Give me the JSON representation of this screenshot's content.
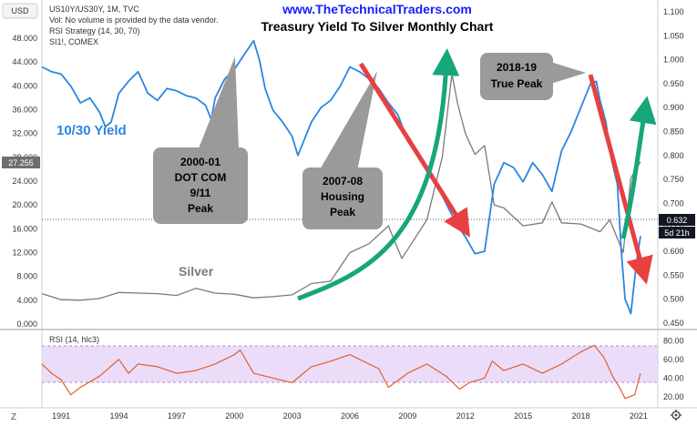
{
  "header": {
    "usd_badge": "USD",
    "symbol_line": "US10Y/US30Y, 1M, TVC",
    "vol_note": "Vol: No volume is provided by the data vendor.",
    "strategy_line": "RSI Strategy (14, 30, 70)",
    "silver_symbol": "SI1!, COMEX",
    "website": "www.TheTechnicalTraders.com",
    "title": "Treasury Yield To Silver Monthly Chart"
  },
  "annotations": {
    "yield_label": "10/30 Yield",
    "silver_label": "Silver",
    "box_dotcom": [
      "2000-01",
      "DOT COM",
      "9/11",
      "Peak"
    ],
    "box_housing": [
      "2007-08",
      "Housing",
      "Peak"
    ],
    "box_true_peak": [
      "2018-19",
      "True Peak"
    ]
  },
  "badges": {
    "left_current": "27.255",
    "right_current": "0.632",
    "right_countdown": "5d 21h"
  },
  "rsi_pane": {
    "label": "RSI (14, hlc3)",
    "ticks": [
      "80.00",
      "60.00",
      "40.00",
      "20.00"
    ]
  },
  "footer": {
    "z_button": "Z",
    "gear_icon": "gear-icon"
  },
  "colors": {
    "yield_line": "#2a86e0",
    "silver_line": "#7a7a7a",
    "red_arrow": "#e84040",
    "green_arrow": "#17a67a",
    "rsi_line": "#e0602c",
    "rsi_band": "#e6d4f7",
    "callout_box": "#9a9a9a",
    "website": "#1a1aff"
  },
  "chart_data": [
    {
      "type": "line",
      "title": "Treasury Yield To Silver Monthly Chart",
      "x_ticks": [
        "1991",
        "1994",
        "1997",
        "2000",
        "2003",
        "2006",
        "2009",
        "2012",
        "2015",
        "2018",
        "2021"
      ],
      "left_axis": {
        "ticks": [
          "0.000",
          "4.000",
          "8.000",
          "12.000",
          "16.000",
          "20.000",
          "24.000",
          "28.000",
          "32.000",
          "36.000",
          "40.000",
          "44.000",
          "48.000"
        ],
        "ylim": [
          0,
          50
        ]
      },
      "right_axis": {
        "ticks": [
          "0.450",
          "0.500",
          "0.550",
          "0.600",
          "0.650",
          "0.700",
          "0.750",
          "0.800",
          "0.850",
          "0.900",
          "0.950",
          "1.000",
          "1.050",
          "1.100"
        ],
        "ylim": [
          0.45,
          1.1
        ]
      },
      "series": [
        {
          "name": "10/30 Yield",
          "axis": "right",
          "points": [
            [
              1990.0,
              0.985
            ],
            [
              1990.5,
              0.975
            ],
            [
              1991.0,
              0.97
            ],
            [
              1991.5,
              0.945
            ],
            [
              1992.0,
              0.91
            ],
            [
              1992.5,
              0.92
            ],
            [
              1993.0,
              0.89
            ],
            [
              1993.3,
              0.86
            ],
            [
              1993.6,
              0.87
            ],
            [
              1994.0,
              0.93
            ],
            [
              1994.5,
              0.955
            ],
            [
              1995.0,
              0.975
            ],
            [
              1995.5,
              0.93
            ],
            [
              1996.0,
              0.915
            ],
            [
              1996.5,
              0.94
            ],
            [
              1997.0,
              0.935
            ],
            [
              1997.5,
              0.925
            ],
            [
              1998.0,
              0.92
            ],
            [
              1998.5,
              0.905
            ],
            [
              1998.8,
              0.875
            ],
            [
              1999.0,
              0.92
            ],
            [
              1999.5,
              0.96
            ],
            [
              2000.0,
              0.98
            ],
            [
              2000.5,
              1.01
            ],
            [
              2001.0,
              1.04
            ],
            [
              2001.3,
              1.0
            ],
            [
              2001.6,
              0.94
            ],
            [
              2002.0,
              0.895
            ],
            [
              2002.5,
              0.87
            ],
            [
              2003.0,
              0.84
            ],
            [
              2003.3,
              0.8
            ],
            [
              2003.6,
              0.83
            ],
            [
              2004.0,
              0.87
            ],
            [
              2004.5,
              0.9
            ],
            [
              2005.0,
              0.915
            ],
            [
              2005.5,
              0.945
            ],
            [
              2006.0,
              0.985
            ],
            [
              2006.5,
              0.975
            ],
            [
              2007.0,
              0.96
            ],
            [
              2007.5,
              0.94
            ],
            [
              2008.0,
              0.91
            ],
            [
              2008.5,
              0.885
            ],
            [
              2009.0,
              0.83
            ],
            [
              2009.5,
              0.8
            ],
            [
              2010.0,
              0.77
            ],
            [
              2010.5,
              0.74
            ],
            [
              2011.0,
              0.7
            ],
            [
              2011.5,
              0.66
            ],
            [
              2012.0,
              0.63
            ],
            [
              2012.5,
              0.595
            ],
            [
              2013.0,
              0.6
            ],
            [
              2013.5,
              0.74
            ],
            [
              2014.0,
              0.785
            ],
            [
              2014.5,
              0.775
            ],
            [
              2015.0,
              0.745
            ],
            [
              2015.5,
              0.785
            ],
            [
              2016.0,
              0.76
            ],
            [
              2016.5,
              0.725
            ],
            [
              2017.0,
              0.81
            ],
            [
              2017.5,
              0.85
            ],
            [
              2018.0,
              0.9
            ],
            [
              2018.5,
              0.95
            ],
            [
              2018.8,
              0.955
            ],
            [
              2019.0,
              0.915
            ],
            [
              2019.3,
              0.87
            ],
            [
              2019.6,
              0.79
            ],
            [
              2019.9,
              0.74
            ],
            [
              2020.1,
              0.6
            ],
            [
              2020.3,
              0.5
            ],
            [
              2020.6,
              0.47
            ],
            [
              2020.9,
              0.58
            ],
            [
              2021.1,
              0.632
            ]
          ]
        },
        {
          "name": "Silver",
          "axis": "left",
          "points": [
            [
              1990.0,
              5.1
            ],
            [
              1991.0,
              4.1
            ],
            [
              1992.0,
              4.0
            ],
            [
              1993.0,
              4.3
            ],
            [
              1994.0,
              5.3
            ],
            [
              1995.0,
              5.2
            ],
            [
              1996.0,
              5.1
            ],
            [
              1997.0,
              4.8
            ],
            [
              1998.0,
              6.0
            ],
            [
              1999.0,
              5.2
            ],
            [
              2000.0,
              5.0
            ],
            [
              2001.0,
              4.4
            ],
            [
              2002.0,
              4.6
            ],
            [
              2003.0,
              4.9
            ],
            [
              2004.0,
              6.8
            ],
            [
              2005.0,
              7.2
            ],
            [
              2006.0,
              12.0
            ],
            [
              2007.0,
              13.5
            ],
            [
              2008.0,
              16.5
            ],
            [
              2008.7,
              11.0
            ],
            [
              2009.0,
              12.5
            ],
            [
              2010.0,
              17.5
            ],
            [
              2010.8,
              28.0
            ],
            [
              2011.3,
              42.0
            ],
            [
              2011.6,
              37.0
            ],
            [
              2012.0,
              32.0
            ],
            [
              2012.5,
              28.5
            ],
            [
              2013.0,
              30.0
            ],
            [
              2013.5,
              20.0
            ],
            [
              2014.0,
              19.5
            ],
            [
              2015.0,
              16.5
            ],
            [
              2016.0,
              17.0
            ],
            [
              2016.5,
              20.5
            ],
            [
              2017.0,
              17.0
            ],
            [
              2018.0,
              16.8
            ],
            [
              2019.0,
              15.5
            ],
            [
              2019.5,
              17.5
            ],
            [
              2020.2,
              12.0
            ],
            [
              2020.6,
              24.5
            ],
            [
              2021.1,
              27.255
            ]
          ]
        },
        {
          "name": "RSI (14, hlc3)",
          "pane": "rsi",
          "ylim": [
            10,
            90
          ],
          "band": [
            30,
            70
          ],
          "points": [
            [
              1990.0,
              55
            ],
            [
              1990.5,
              45
            ],
            [
              1991.0,
              38
            ],
            [
              1991.5,
              22
            ],
            [
              1992.0,
              30
            ],
            [
              1993.0,
              42
            ],
            [
              1994.0,
              60
            ],
            [
              1994.5,
              45
            ],
            [
              1995.0,
              55
            ],
            [
              1996.0,
              52
            ],
            [
              1997.0,
              45
            ],
            [
              1998.0,
              48
            ],
            [
              1999.0,
              55
            ],
            [
              2000.0,
              65
            ],
            [
              2000.3,
              70
            ],
            [
              2001.0,
              45
            ],
            [
              2002.0,
              40
            ],
            [
              2003.0,
              35
            ],
            [
              2004.0,
              52
            ],
            [
              2005.0,
              58
            ],
            [
              2006.0,
              65
            ],
            [
              2006.5,
              60
            ],
            [
              2007.5,
              50
            ],
            [
              2008.0,
              30
            ],
            [
              2009.0,
              45
            ],
            [
              2010.0,
              55
            ],
            [
              2011.0,
              42
            ],
            [
              2011.7,
              28
            ],
            [
              2012.2,
              35
            ],
            [
              2013.0,
              40
            ],
            [
              2013.4,
              58
            ],
            [
              2014.0,
              48
            ],
            [
              2015.0,
              55
            ],
            [
              2016.0,
              45
            ],
            [
              2017.0,
              55
            ],
            [
              2018.0,
              68
            ],
            [
              2018.7,
              75
            ],
            [
              2019.2,
              62
            ],
            [
              2019.7,
              40
            ],
            [
              2020.0,
              30
            ],
            [
              2020.3,
              18
            ],
            [
              2020.8,
              22
            ],
            [
              2021.1,
              45
            ]
          ]
        }
      ]
    }
  ]
}
